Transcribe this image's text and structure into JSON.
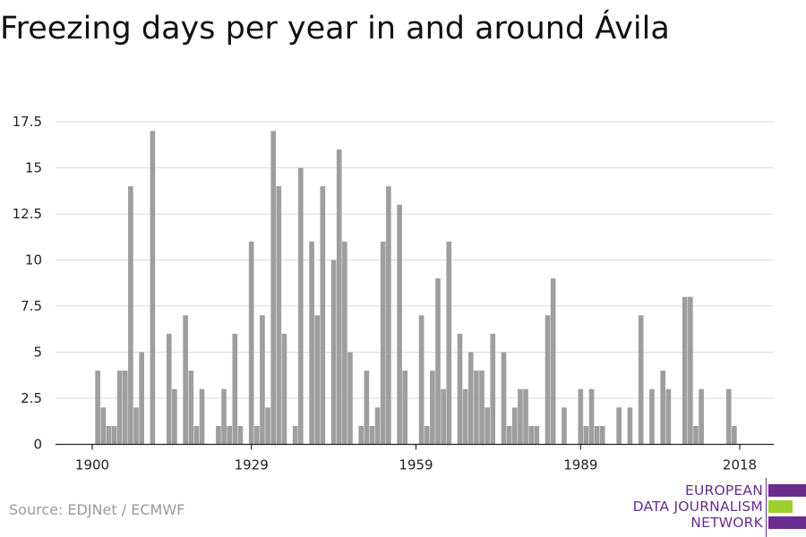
{
  "chart_data": {
    "type": "bar",
    "title": "Freezing days per year in and around Ávila",
    "xlabel": "",
    "ylabel": "",
    "ylim": [
      0,
      17.5
    ],
    "xlim": [
      1900,
      2021
    ],
    "yticks": [
      "0",
      "2.5",
      "5",
      "7.5",
      "10",
      "12.5",
      "15",
      "17.5"
    ],
    "yticks_values": [
      0,
      2.5,
      5,
      7.5,
      10,
      12.5,
      15,
      17.5
    ],
    "xticks": [
      "1900",
      "1929",
      "1959",
      "1989",
      "2018"
    ],
    "grid": true,
    "bar_color": "#9e9e9e",
    "x": [
      1900,
      1901,
      1902,
      1903,
      1904,
      1905,
      1906,
      1907,
      1908,
      1909,
      1910,
      1911,
      1912,
      1913,
      1914,
      1915,
      1916,
      1917,
      1918,
      1919,
      1920,
      1921,
      1922,
      1923,
      1924,
      1925,
      1926,
      1927,
      1928,
      1929,
      1930,
      1931,
      1932,
      1933,
      1934,
      1935,
      1936,
      1937,
      1938,
      1939,
      1940,
      1941,
      1942,
      1943,
      1944,
      1945,
      1946,
      1947,
      1948,
      1949,
      1950,
      1951,
      1952,
      1953,
      1954,
      1955,
      1956,
      1957,
      1958,
      1959,
      1960,
      1961,
      1962,
      1963,
      1964,
      1965,
      1966,
      1967,
      1968,
      1969,
      1970,
      1971,
      1972,
      1973,
      1974,
      1975,
      1976,
      1977,
      1978,
      1979,
      1980,
      1981,
      1982,
      1983,
      1984,
      1985,
      1986,
      1987,
      1988,
      1989,
      1990,
      1991,
      1992,
      1993,
      1994,
      1995,
      1996,
      1997,
      1998,
      1999,
      2000,
      2001,
      2002,
      2003,
      2004,
      2005,
      2006,
      2007,
      2008,
      2009,
      2010,
      2011,
      2012,
      2013,
      2014,
      2015,
      2016,
      2017,
      2018,
      2019,
      2020
    ],
    "values": [
      0,
      4,
      2,
      1,
      1,
      4,
      4,
      14,
      2,
      5,
      0,
      17,
      0,
      0,
      6,
      3,
      0,
      7,
      4,
      1,
      3,
      0,
      0,
      1,
      3,
      1,
      6,
      1,
      0,
      11,
      1,
      7,
      2,
      17,
      14,
      6,
      0,
      1,
      15,
      0,
      11,
      7,
      14,
      0,
      10,
      16,
      11,
      5,
      0,
      1,
      4,
      1,
      2,
      11,
      14,
      0,
      13,
      4,
      0,
      0,
      7,
      1,
      4,
      9,
      3,
      11,
      0,
      6,
      3,
      5,
      4,
      4,
      2,
      6,
      0,
      5,
      1,
      2,
      3,
      3,
      1,
      1,
      0,
      7,
      9,
      0,
      2,
      0,
      0,
      3,
      1,
      3,
      1,
      1,
      0,
      0,
      2,
      0,
      2,
      0,
      7,
      0,
      3,
      0,
      4,
      3,
      0,
      0,
      8,
      8,
      1,
      3,
      0,
      0,
      0,
      0,
      3,
      1,
      0,
      0,
      0
    ]
  },
  "footer": {
    "source": "Source: EDJNet / ECMWF"
  },
  "logo": {
    "line1": "EUROPEAN",
    "line2": "DATA JOURNALISM",
    "line3": "NETWORK",
    "purple": "#6a2c8e",
    "green": "#9bd12c"
  }
}
